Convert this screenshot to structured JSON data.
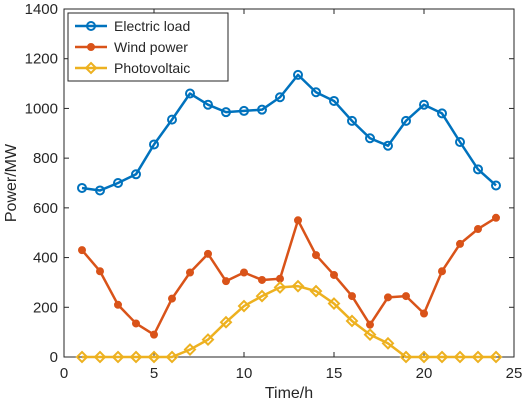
{
  "chart_data": {
    "type": "line",
    "title": "",
    "xlabel": "Time/h",
    "ylabel": "Power/MW",
    "xlim": [
      0,
      25
    ],
    "ylim": [
      0,
      1400
    ],
    "xticks": [
      0,
      5,
      10,
      15,
      20,
      25
    ],
    "yticks": [
      0,
      200,
      400,
      600,
      800,
      1000,
      1200,
      1400
    ],
    "xtick_labels": [
      "0",
      "5",
      "10",
      "15",
      "20",
      "25"
    ],
    "ytick_labels": [
      "0",
      "200",
      "400",
      "600",
      "800",
      "1000",
      "1200",
      "1400"
    ],
    "grid": false,
    "legend_position": "top-left",
    "x": [
      1,
      2,
      3,
      4,
      5,
      6,
      7,
      8,
      9,
      10,
      11,
      12,
      13,
      14,
      15,
      16,
      17,
      18,
      19,
      20,
      21,
      22,
      23,
      24
    ],
    "series": [
      {
        "name": "Electric load",
        "color": "#0072BD",
        "marker": "circle",
        "values": [
          680,
          670,
          700,
          735,
          855,
          955,
          1060,
          1015,
          985,
          990,
          995,
          1045,
          1135,
          1065,
          1030,
          950,
          880,
          850,
          950,
          1015,
          980,
          865,
          755,
          690
        ]
      },
      {
        "name": "Wind power",
        "color": "#D95319",
        "marker": "dot",
        "values": [
          430,
          345,
          210,
          135,
          90,
          235,
          340,
          415,
          305,
          340,
          310,
          315,
          550,
          410,
          330,
          245,
          130,
          240,
          245,
          175,
          345,
          455,
          515,
          560
        ]
      },
      {
        "name": "Photovoltaic",
        "color": "#EDB120",
        "marker": "diamond",
        "values": [
          0,
          0,
          0,
          0,
          0,
          0,
          30,
          70,
          140,
          205,
          245,
          280,
          285,
          265,
          215,
          145,
          90,
          55,
          0,
          0,
          0,
          0,
          0,
          0
        ]
      }
    ]
  }
}
